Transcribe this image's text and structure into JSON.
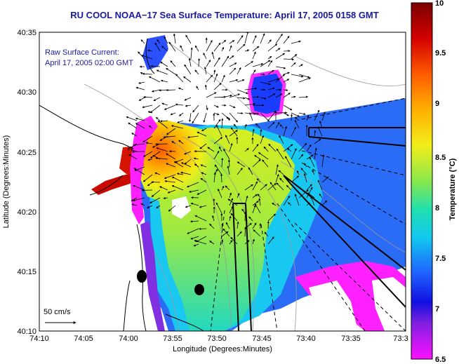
{
  "title": "RU COOL  NOAA−17 Sea Surface Temperature:  April 17, 2005 0158 GMT",
  "legend": {
    "line1": "Raw Surface Current:",
    "line2": "April 17, 2005 02:00 GMT"
  },
  "scale_label": "50 cm/s",
  "axes": {
    "xlabel": "Longitude (Degrees:Minutes)",
    "ylabel": "Latitude (Degrees:Minutes)",
    "x_ticks": [
      "74:10",
      "74:05",
      "74:00",
      "73:55",
      "73:50",
      "73:45",
      "73:40",
      "73:35",
      "73:3"
    ],
    "y_ticks": [
      "40:35",
      "40:30",
      "40:25",
      "40:20",
      "40:15",
      "40:10"
    ]
  },
  "colorbar": {
    "label": "Temperature (°C)",
    "min": 6.5,
    "max": 10,
    "ticks": [
      "10",
      "9.5",
      "9",
      "8.5",
      "8",
      "7.5",
      "7",
      "6.5"
    ]
  },
  "colors": {
    "title": "#1a1aa0",
    "land": "#ffffff",
    "contour": "#999999"
  }
}
